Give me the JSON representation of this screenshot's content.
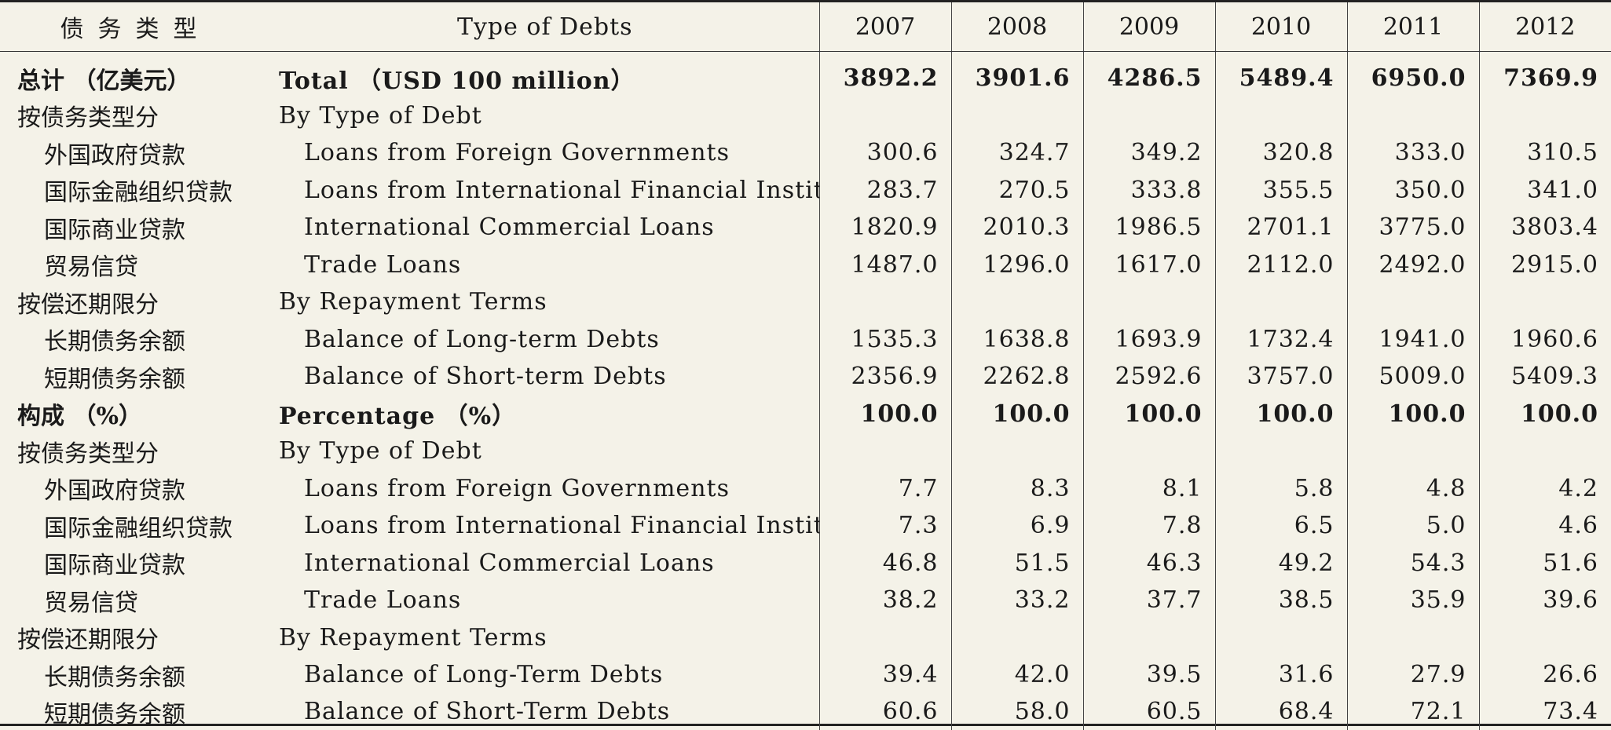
{
  "header": {
    "cn": "债务类型",
    "en": "Type of Debts",
    "years": [
      "2007",
      "2008",
      "2009",
      "2010",
      "2011",
      "2012"
    ]
  },
  "rows": [
    {
      "cn": "总计 （亿美元）",
      "en": "Total （USD 100 million）",
      "values": [
        "3892.2",
        "3901.6",
        "4286.5",
        "5489.4",
        "6950.0",
        "7369.9"
      ]
    },
    {
      "cn": "按债务类型分",
      "en": "By Type of Debt",
      "values": [
        "",
        "",
        "",
        "",
        "",
        ""
      ]
    },
    {
      "cn": "外国政府贷款",
      "en": "Loans from Foreign Governments",
      "values": [
        "300.6",
        "324.7",
        "349.2",
        "320.8",
        "333.0",
        "310.5"
      ]
    },
    {
      "cn": "国际金融组织贷款",
      "en": "Loans from International Financial Institutions",
      "values": [
        "283.7",
        "270.5",
        "333.8",
        "355.5",
        "350.0",
        "341.0"
      ]
    },
    {
      "cn": "国际商业贷款",
      "en": "International Commercial Loans",
      "values": [
        "1820.9",
        "2010.3",
        "1986.5",
        "2701.1",
        "3775.0",
        "3803.4"
      ]
    },
    {
      "cn": "贸易信贷",
      "en": "Trade Loans",
      "values": [
        "1487.0",
        "1296.0",
        "1617.0",
        "2112.0",
        "2492.0",
        "2915.0"
      ]
    },
    {
      "cn": "按偿还期限分",
      "en": "By Repayment Terms",
      "values": [
        "",
        "",
        "",
        "",
        "",
        ""
      ]
    },
    {
      "cn": "长期债务余额",
      "en": "Balance of Long-term Debts",
      "values": [
        "1535.3",
        "1638.8",
        "1693.9",
        "1732.4",
        "1941.0",
        "1960.6"
      ]
    },
    {
      "cn": "短期债务余额",
      "en": "Balance of Short-term Debts",
      "values": [
        "2356.9",
        "2262.8",
        "2592.6",
        "3757.0",
        "5009.0",
        "5409.3"
      ]
    },
    {
      "cn": "构成 （%）",
      "en": "Percentage （%）",
      "values": [
        "100.0",
        "100.0",
        "100.0",
        "100.0",
        "100.0",
        "100.0"
      ]
    },
    {
      "cn": "按债务类型分",
      "en": "By Type of Debt",
      "values": [
        "",
        "",
        "",
        "",
        "",
        ""
      ]
    },
    {
      "cn": "外国政府贷款",
      "en": "Loans from Foreign Governments",
      "values": [
        "7.7",
        "8.3",
        "8.1",
        "5.8",
        "4.8",
        "4.2"
      ]
    },
    {
      "cn": "国际金融组织贷款",
      "en": "Loans from International Financial Institutions",
      "values": [
        "7.3",
        "6.9",
        "7.8",
        "6.5",
        "5.0",
        "4.6"
      ]
    },
    {
      "cn": "国际商业贷款",
      "en": "International Commercial Loans",
      "values": [
        "46.8",
        "51.5",
        "46.3",
        "49.2",
        "54.3",
        "51.6"
      ]
    },
    {
      "cn": "贸易信贷",
      "en": "Trade Loans",
      "values": [
        "38.2",
        "33.2",
        "37.7",
        "38.5",
        "35.9",
        "39.6"
      ]
    },
    {
      "cn": "按偿还期限分",
      "en": "By Repayment Terms",
      "values": [
        "",
        "",
        "",
        "",
        "",
        ""
      ]
    },
    {
      "cn": "长期债务余额",
      "en": "Balance of Long-Term Debts",
      "values": [
        "39.4",
        "42.0",
        "39.5",
        "31.6",
        "27.9",
        "26.6"
      ]
    },
    {
      "cn": "短期债务余额",
      "en": "Balance of Short-Term Debts",
      "values": [
        "60.6",
        "58.0",
        "60.5",
        "68.4",
        "72.1",
        "73.4"
      ]
    }
  ]
}
